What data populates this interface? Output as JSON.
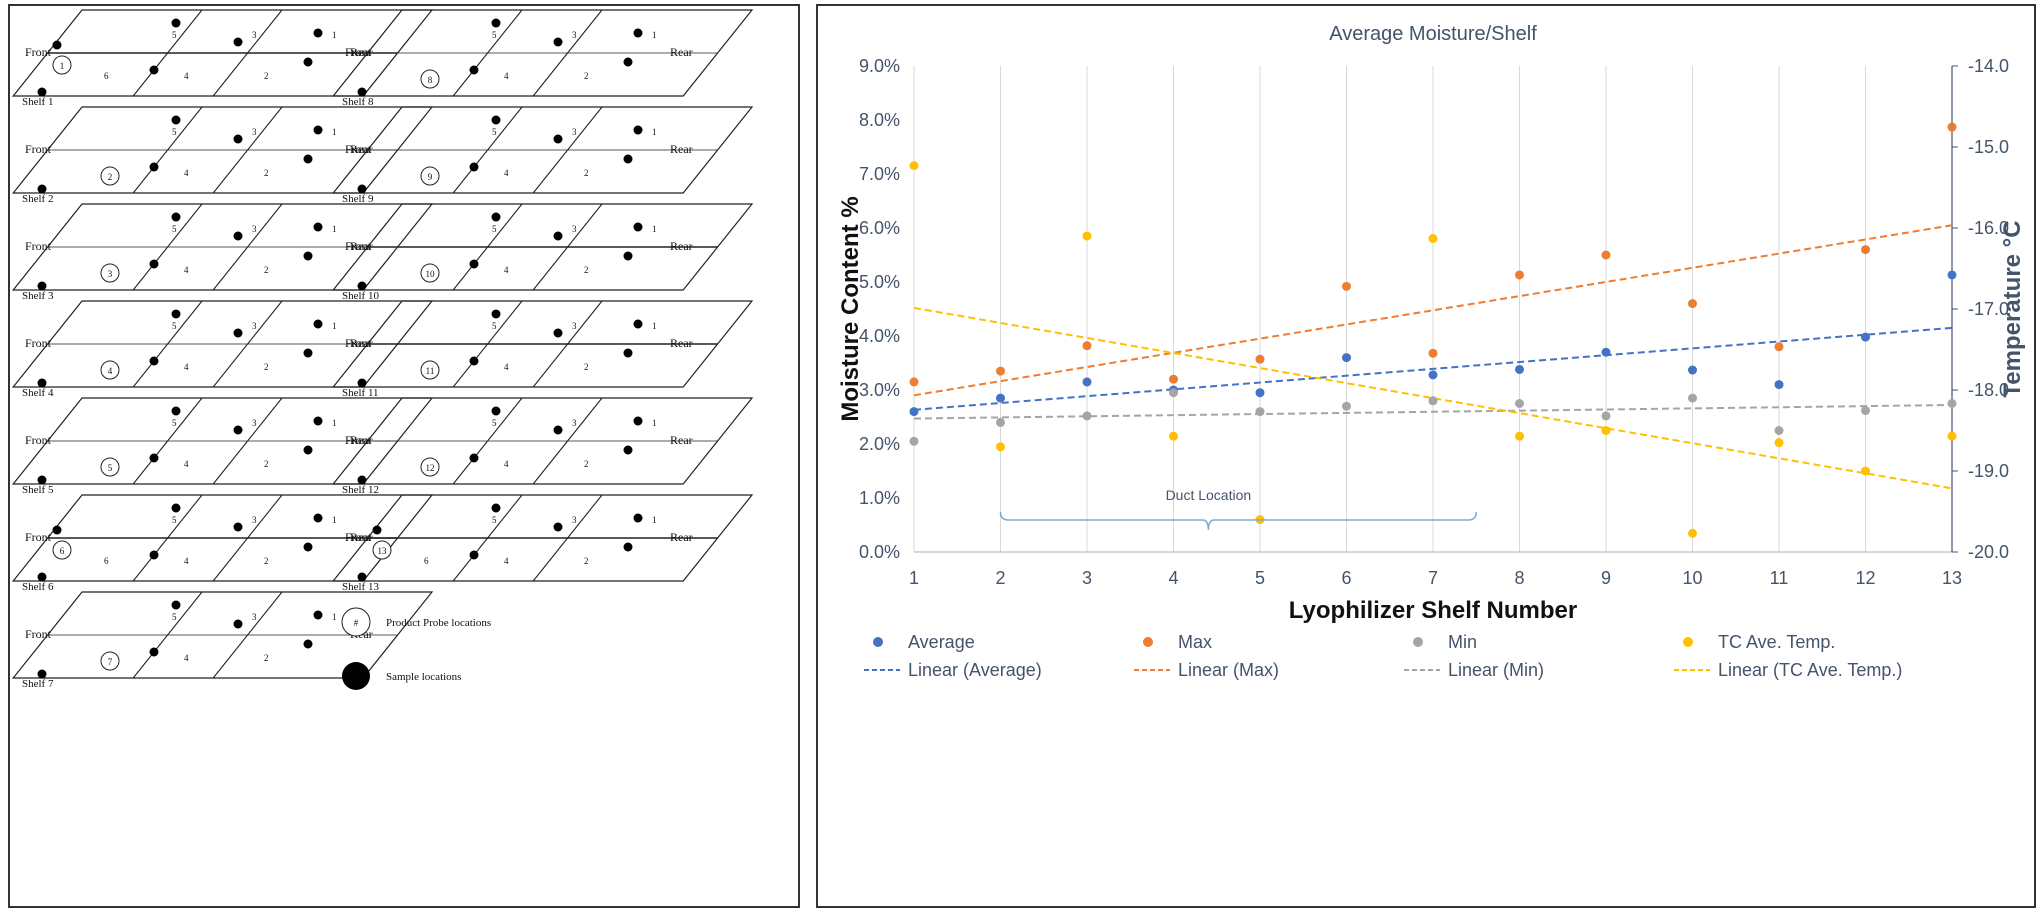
{
  "diagram": {
    "front_label": "Front",
    "rear_label": "Rear",
    "cell_numbers": [
      "5",
      "3",
      "1",
      "6",
      "4",
      "2"
    ],
    "shelves": [
      {
        "label": "Shelf 1",
        "probe": "1"
      },
      {
        "label": "Shelf 2",
        "probe": "2"
      },
      {
        "label": "Shelf 3",
        "probe": "3"
      },
      {
        "label": "Shelf 4",
        "probe": "4"
      },
      {
        "label": "Shelf 5",
        "probe": "5"
      },
      {
        "label": "Shelf 6",
        "probe": "6"
      },
      {
        "label": "Shelf 7",
        "probe": "7"
      },
      {
        "label": "Shelf 8",
        "probe": "8"
      },
      {
        "label": "Shelf 9",
        "probe": "9"
      },
      {
        "label": "Shelf 10",
        "probe": "10"
      },
      {
        "label": "Shelf 11",
        "probe": "11"
      },
      {
        "label": "Shelf 12",
        "probe": "12"
      },
      {
        "label": "Shelf 13",
        "probe": "13"
      }
    ],
    "legend": {
      "probe_symbol": "#",
      "probe_text": "Product Probe locations",
      "sample_text": "Sample locations"
    }
  },
  "chart_data": {
    "type": "scatter",
    "title": "Average Moisture/Shelf",
    "xlabel": "Lyophilizer Shelf Number",
    "ylabel": "Moisture Content %",
    "y2label": "Temperature °C",
    "x": [
      1,
      2,
      3,
      4,
      5,
      6,
      7,
      8,
      9,
      10,
      11,
      12,
      13
    ],
    "xlim": [
      1,
      13
    ],
    "ylim": [
      0,
      9
    ],
    "y_ticks": [
      "0.0%",
      "1.0%",
      "2.0%",
      "3.0%",
      "4.0%",
      "5.0%",
      "6.0%",
      "7.0%",
      "8.0%",
      "9.0%"
    ],
    "y2lim": [
      -20,
      -14
    ],
    "y2_ticks": [
      "-20.0",
      "-19.0",
      "-18.0",
      "-17.0",
      "-16.0",
      "-15.0",
      "-14.0"
    ],
    "grid": "vertical",
    "legend_position": "bottom",
    "series": [
      {
        "name": "Average",
        "axis": "left",
        "color": "#4472c4",
        "values": [
          2.6,
          2.85,
          3.15,
          3.0,
          2.95,
          3.6,
          3.28,
          3.38,
          3.7,
          3.37,
          3.1,
          3.98,
          5.13
        ]
      },
      {
        "name": "Max",
        "axis": "left",
        "color": "#ed7d31",
        "values": [
          3.15,
          3.35,
          3.82,
          3.2,
          3.57,
          4.92,
          3.68,
          5.13,
          5.5,
          4.6,
          3.8,
          5.6,
          7.87
        ]
      },
      {
        "name": "Min",
        "axis": "left",
        "color": "#a5a5a5",
        "values": [
          2.05,
          2.4,
          2.52,
          2.95,
          2.6,
          2.7,
          2.8,
          2.75,
          2.52,
          2.85,
          2.25,
          2.62,
          2.75
        ]
      },
      {
        "name": "TC Ave. Temp.",
        "axis": "right",
        "color": "#ffc000",
        "values": [
          -15.23,
          -18.7,
          -16.1,
          -18.57,
          -19.6,
          null,
          -16.13,
          -18.57,
          -18.5,
          -19.77,
          -18.65,
          -19.0,
          -18.57
        ]
      }
    ],
    "trendlines": [
      {
        "name": "Linear (Average)",
        "color": "#4472c4"
      },
      {
        "name": "Linear (Max)",
        "color": "#ed7d31"
      },
      {
        "name": "Linear (Min)",
        "color": "#a5a5a5"
      },
      {
        "name": "Linear (TC Ave. Temp.)",
        "color": "#ffc000"
      }
    ],
    "annotation": {
      "text": "Duct Location",
      "from_x": 2,
      "to_x": 7.5
    }
  }
}
